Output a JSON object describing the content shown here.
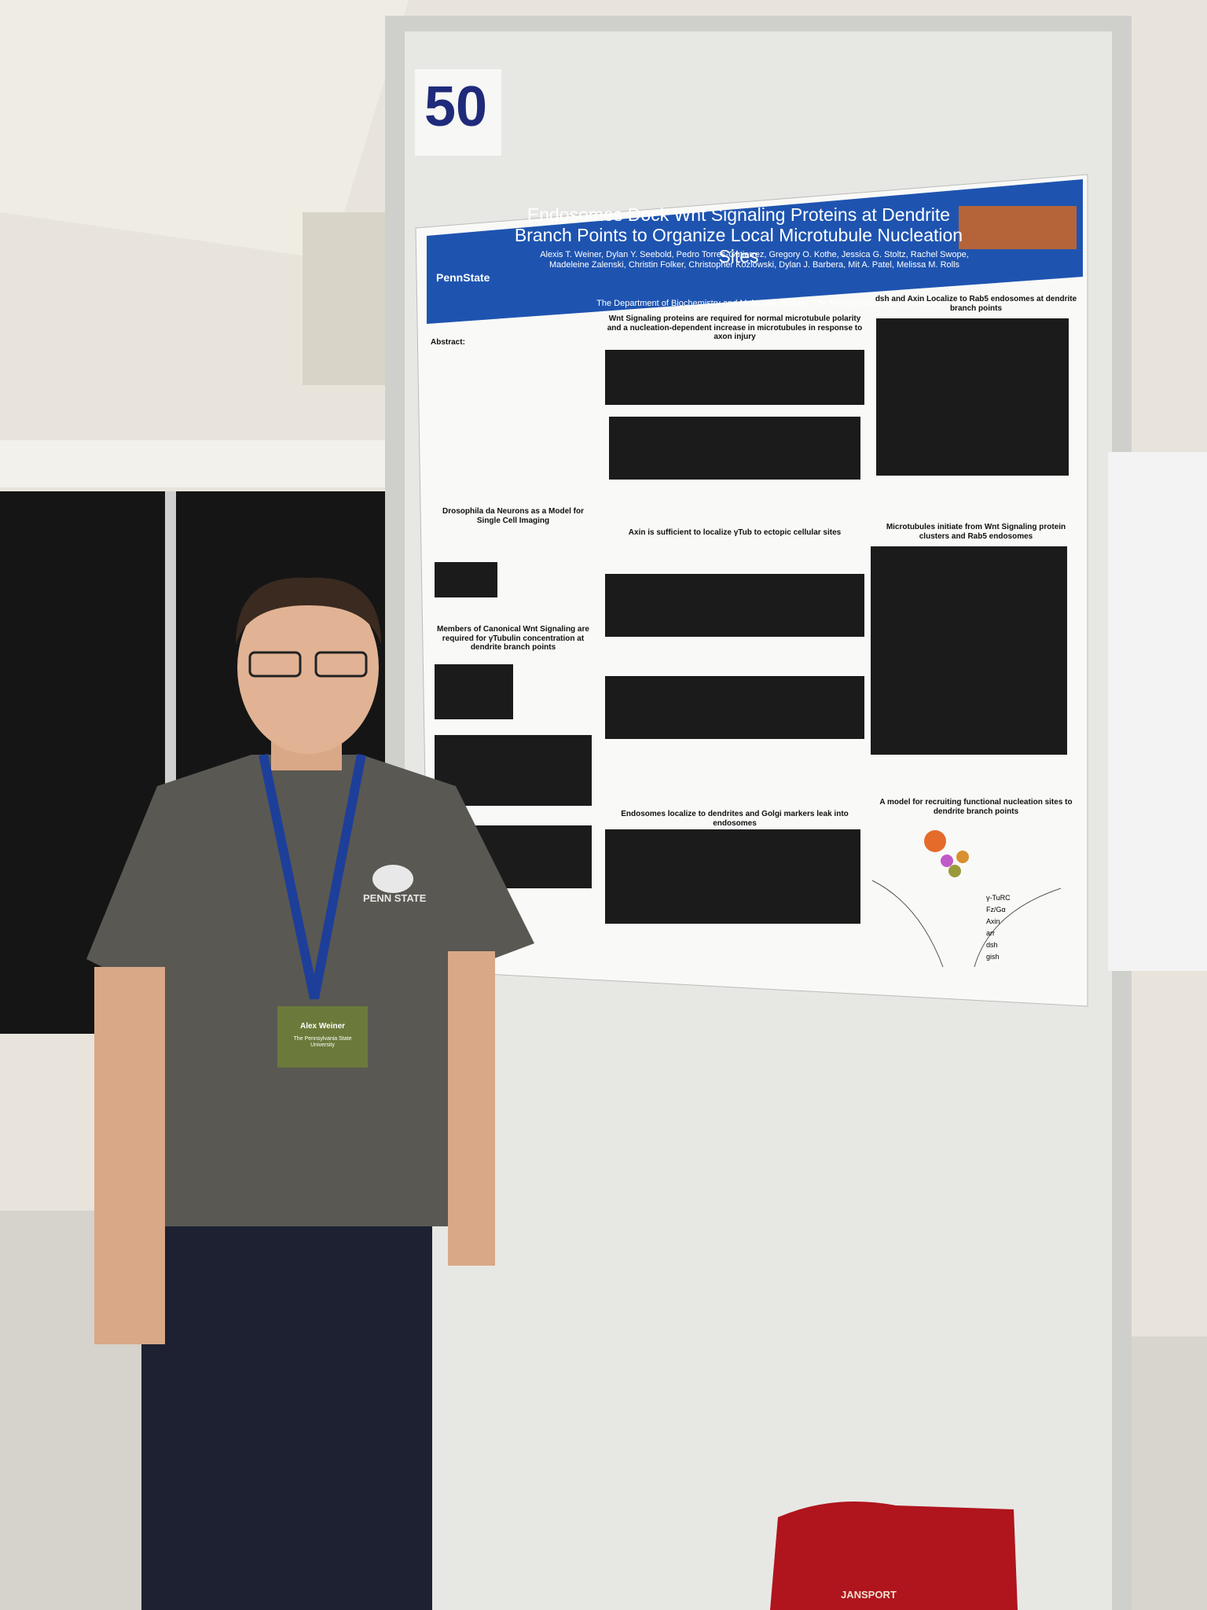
{
  "poster_number": "50",
  "poster": {
    "institution": "PennState",
    "title": "Endosomes Dock Wnt Signaling Proteins at Dendrite Branch Points to Organize Local Microtubule Nucleation Sites",
    "authors": "Alexis T. Weiner, Dylan Y. Seebold, Pedro Torres-Gutierrez, Gregory O. Kothe, Jessica G. Stoltz, Rachel Swope, Madeleine Zalenski, Christin Folker, Christopher Kozlowski, Dylan J. Barbera, Mit A. Patel, Melissa M. Rolls",
    "department": "The Department of Biochemistry and Molecular Biology, The Pennsylvania State University",
    "sections": [
      {
        "heading": "Abstract:"
      },
      {
        "heading": "Drosophila da Neurons as a Model for Single Cell Imaging"
      },
      {
        "heading": "Members of Canonical Wnt Signaling are required for γTubulin concentration at dendrite branch points"
      },
      {
        "heading": "Wnt Signaling proteins are required for normal microtubule polarity and a nucleation-dependent increase in microtubules in response to axon injury"
      },
      {
        "heading": "Axin is sufficient to localize γTub to ectopic cellular sites"
      },
      {
        "heading": "Endosomes localize to dendrites and Golgi markers leak into endosomes"
      },
      {
        "heading": "dsh and Axin Localize to Rab5 endosomes at dendrite branch points"
      },
      {
        "heading": "Microtubules initiate from Wnt Signaling protein clusters and Rab5 endosomes"
      },
      {
        "heading": "A model for recruiting functional nucleation sites to dendrite branch points"
      }
    ],
    "model_legend": [
      "γ-TuRC",
      "Fz/Gα",
      "Axin",
      "arr",
      "dsh",
      "gish"
    ]
  },
  "badge": {
    "name": "Alex Weiner",
    "affiliation": "The Pennsylvania State University"
  },
  "shirt_logo": "PENN STATE",
  "bag_brand": "JANSPORT"
}
